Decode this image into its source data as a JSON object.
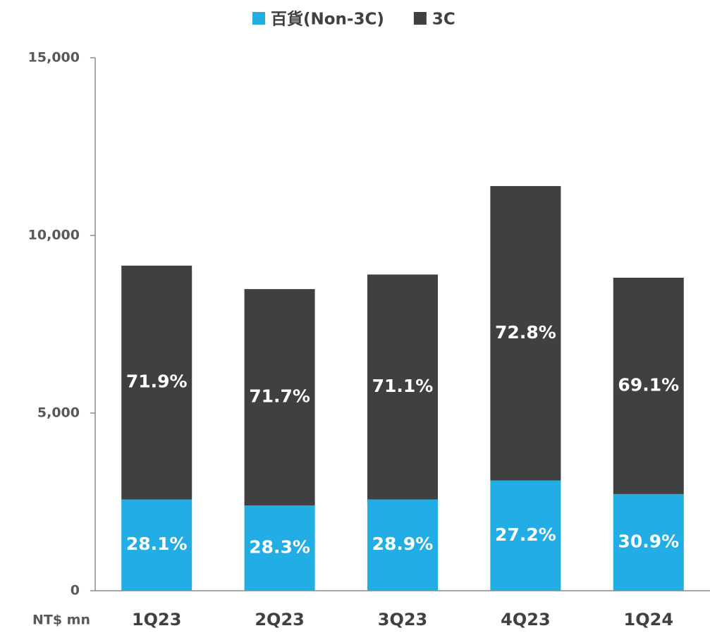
{
  "chart_data": {
    "type": "stacked_bar",
    "y_label": "NT$ mn",
    "categories": [
      "1Q23",
      "2Q23",
      "3Q23",
      "4Q23",
      "1Q24"
    ],
    "series": [
      {
        "name": "百貨(Non-3C)",
        "color": "#22ade4",
        "values": [
          2570,
          2400,
          2570,
          3100,
          2720
        ],
        "share_labels": [
          "28.1%",
          "28.3%",
          "28.9%",
          "27.2%",
          "30.9%"
        ]
      },
      {
        "name": "3C",
        "color": "#404040",
        "values": [
          6580,
          6090,
          6330,
          8290,
          6090
        ],
        "share_labels": [
          "71.9%",
          "71.7%",
          "71.1%",
          "72.8%",
          "69.1%"
        ]
      }
    ],
    "ylim": [
      0,
      15000
    ],
    "yticks": [
      0,
      {
        "value": 5000,
        "label": "5,000"
      },
      {
        "value": 10000,
        "label": "10,000"
      },
      {
        "value": 15000,
        "label": "15,000"
      }
    ],
    "legend": "top"
  }
}
